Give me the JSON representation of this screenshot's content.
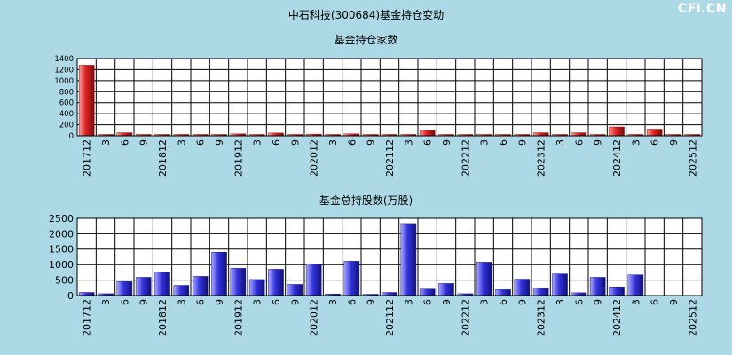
{
  "page": {
    "title": "中石科技(300684)基金持仓变动",
    "watermark": "CFi.CN"
  },
  "colors": {
    "background": "#add8e6",
    "plot_background": "#ffffff",
    "grid": "#000000",
    "bar_red": "#dd2222",
    "bar_blue": "#3333dd"
  },
  "chart_data": [
    {
      "type": "bar",
      "title": "基金持仓家数",
      "categories": [
        "201712",
        "3",
        "6",
        "9",
        "201812",
        "3",
        "6",
        "9",
        "201912",
        "3",
        "6",
        "9",
        "202012",
        "3",
        "6",
        "9",
        "202112",
        "3",
        "6",
        "9",
        "202212",
        "3",
        "6",
        "9",
        "202312",
        "3",
        "6",
        "9",
        "202412",
        "3",
        "6",
        "9",
        "202512"
      ],
      "x_tick_labels": [
        "201712",
        "3",
        "6",
        "9",
        "201812",
        "3",
        "6",
        "9",
        "201912",
        "3",
        "6",
        "9",
        "202012",
        "3",
        "6",
        "9",
        "202112",
        "3",
        "6",
        "9",
        "202212",
        "3",
        "6",
        "9",
        "202312",
        "3",
        "6",
        "9",
        "202412",
        "3",
        "6",
        "9",
        "202512"
      ],
      "values": [
        1280,
        8,
        55,
        15,
        10,
        8,
        12,
        8,
        35,
        10,
        50,
        10,
        30,
        10,
        35,
        10,
        8,
        10,
        100,
        10,
        8,
        10,
        8,
        10,
        55,
        10,
        55,
        10,
        160,
        8,
        120,
        8,
        8
      ],
      "ylim": [
        0,
        1400
      ],
      "y_ticks": [
        0,
        200,
        400,
        600,
        800,
        1000,
        1200,
        1400
      ],
      "color": "red",
      "grid": true
    },
    {
      "type": "bar",
      "title": "基金总持股数(万股)",
      "categories": [
        "201712",
        "3",
        "6",
        "9",
        "201812",
        "3",
        "6",
        "9",
        "201912",
        "3",
        "6",
        "9",
        "202012",
        "3",
        "6",
        "9",
        "202112",
        "3",
        "6",
        "9",
        "202212",
        "3",
        "6",
        "9",
        "202312",
        "3",
        "6",
        "9",
        "202412",
        "3",
        "6",
        "9",
        "202512"
      ],
      "x_tick_labels": [
        "201712",
        "3",
        "6",
        "9",
        "201812",
        "3",
        "6",
        "9",
        "201912",
        "3",
        "6",
        "9",
        "202012",
        "3",
        "6",
        "9",
        "202112",
        "3",
        "6",
        "9",
        "202212",
        "3",
        "6",
        "9",
        "202312",
        "3",
        "6",
        "9",
        "202412",
        "3",
        "6",
        "9",
        "202512"
      ],
      "values": [
        100,
        60,
        450,
        590,
        760,
        330,
        620,
        1400,
        880,
        520,
        850,
        360,
        1020,
        50,
        1110,
        20,
        100,
        2330,
        210,
        390,
        60,
        1080,
        190,
        530,
        240,
        700,
        90,
        590,
        280,
        670,
        0,
        0,
        0
      ],
      "ylim": [
        0,
        2500
      ],
      "y_ticks": [
        0,
        500,
        1000,
        1500,
        2000,
        2500
      ],
      "color": "blue",
      "grid": true
    }
  ]
}
